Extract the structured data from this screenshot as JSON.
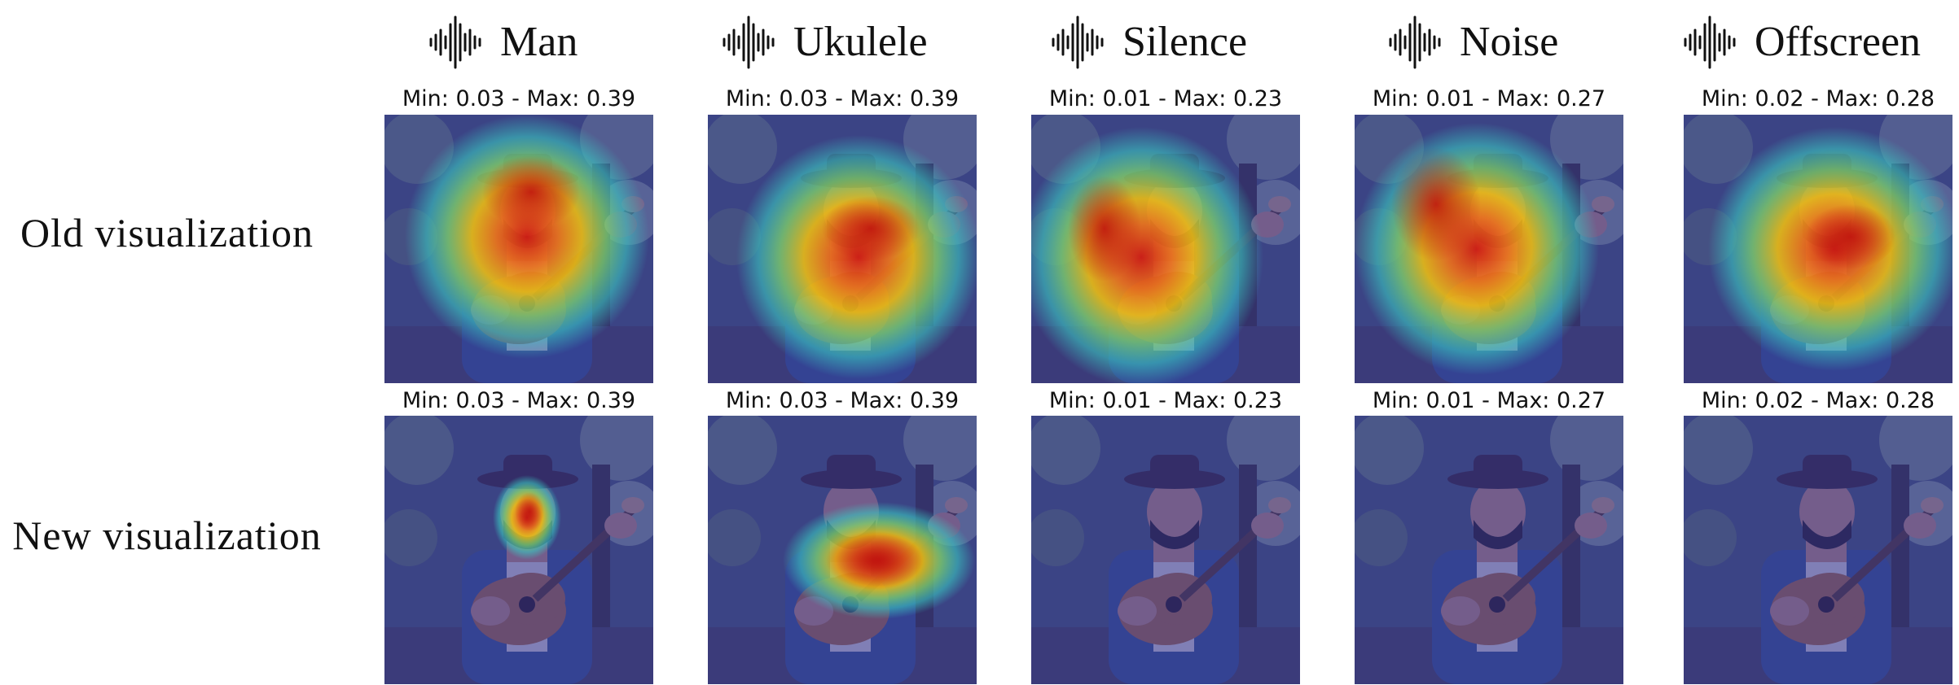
{
  "rows": [
    {
      "label": "Old visualization"
    },
    {
      "label": "New visualization"
    }
  ],
  "columns": [
    {
      "title": "Man",
      "icon": "audio-waveform-icon"
    },
    {
      "title": "Ukulele",
      "icon": "audio-waveform-icon"
    },
    {
      "title": "Silence",
      "icon": "audio-waveform-icon"
    },
    {
      "title": "Noise",
      "icon": "audio-waveform-icon"
    },
    {
      "title": "Offscreen",
      "icon": "audio-waveform-icon"
    }
  ],
  "panels": [
    [
      {
        "range": "Min: 0.03 - Max: 0.39",
        "heatmap": "diffuse, centered on man's face and upper body"
      },
      {
        "range": "Min: 0.03 - Max: 0.39",
        "heatmap": "diffuse, centered on ukulele"
      },
      {
        "range": "Min: 0.01 - Max: 0.23",
        "heatmap": "diffuse, left body region"
      },
      {
        "range": "Min: 0.01 - Max: 0.27",
        "heatmap": "diffuse, left and upper body region"
      },
      {
        "range": "Min: 0.02 - Max: 0.28",
        "heatmap": "diffuse, centered on ukulele"
      }
    ],
    [
      {
        "range": "Min: 0.03 - Max: 0.39",
        "heatmap": "localized on man's face"
      },
      {
        "range": "Min: 0.03 - Max: 0.39",
        "heatmap": "localized on ukulele"
      },
      {
        "range": "Min: 0.01 - Max: 0.23",
        "heatmap": "none"
      },
      {
        "range": "Min: 0.01 - Max: 0.27",
        "heatmap": "none"
      },
      {
        "range": "Min: 0.02 - Max: 0.28",
        "heatmap": "none"
      }
    ]
  ],
  "colors": {
    "heat_high": "#d21e12",
    "heat_mid": "#f4c20d",
    "heat_low": "#39c7c0",
    "overlay_base": "#2f2f9a"
  }
}
